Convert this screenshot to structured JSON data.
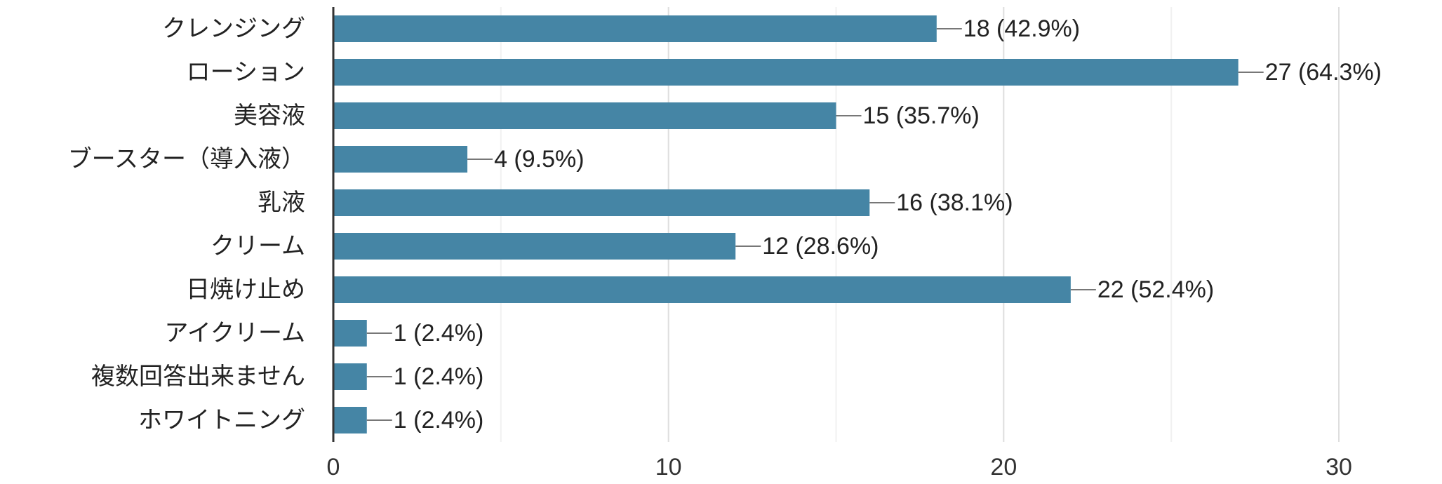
{
  "chart_data": {
    "type": "bar",
    "orientation": "horizontal",
    "categories": [
      "クレンジング",
      "ローション",
      "美容液",
      "ブースター（導入液）",
      "乳液",
      "クリーム",
      "日焼け止め",
      "アイクリーム",
      "複数回答出来ません",
      "ホワイトニング"
    ],
    "values": [
      18,
      27,
      15,
      4,
      16,
      12,
      22,
      1,
      1,
      1
    ],
    "value_labels": [
      "18 (42.9%)",
      "27 (64.3%)",
      "15 (35.7%)",
      "4 (9.5%)",
      "16 (38.1%)",
      "12 (28.6%)",
      "22 (52.4%)",
      "1 (2.4%)",
      "1 (2.4%)",
      "1 (2.4%)"
    ],
    "xlim": [
      0,
      30
    ],
    "major_ticks": [
      0,
      10,
      20,
      30
    ],
    "minor_gridlines": [
      5,
      15,
      25
    ],
    "grid": true,
    "bar_color": "#4585a5",
    "title": "",
    "xlabel": "",
    "ylabel": ""
  }
}
